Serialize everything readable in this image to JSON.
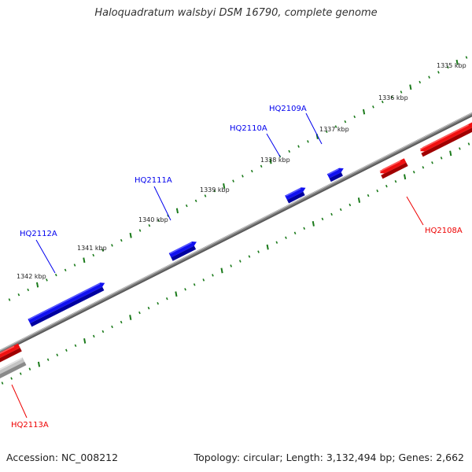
{
  "title": "Haloquadratum walsbyi DSM 16790, complete genome",
  "footer": {
    "accession": "Accession: NC_008212",
    "summary": "Topology: circular; Length: 3,132,494 bp; Genes: 2,662"
  },
  "colors": {
    "forward_gene": "#0000ee",
    "reverse_gene": "#ee0000",
    "other_feature": "#bbbbbb",
    "backbone": "#808080",
    "tick": "#1a7a1a"
  },
  "ruler": [
    {
      "label": "1335 kbp",
      "position_kbp": 1335
    },
    {
      "label": "1336 kbp",
      "position_kbp": 1336
    },
    {
      "label": "1337 kbp",
      "position_kbp": 1337
    },
    {
      "label": "1338 kbp",
      "position_kbp": 1338
    },
    {
      "label": "1339 kbp",
      "position_kbp": 1339
    },
    {
      "label": "1340 kbp",
      "position_kbp": 1340
    },
    {
      "label": "1341 kbp",
      "position_kbp": 1341
    },
    {
      "label": "1342 kbp",
      "position_kbp": 1342
    }
  ],
  "genes": [
    {
      "label": "HQ2109A",
      "strand": "forward"
    },
    {
      "label": "HQ2110A",
      "strand": "forward"
    },
    {
      "label": "HQ2111A",
      "strand": "forward"
    },
    {
      "label": "HQ2112A",
      "strand": "forward"
    },
    {
      "label": "HQ2108A",
      "strand": "reverse"
    },
    {
      "label": "HQ2113A",
      "strand": "reverse"
    }
  ]
}
